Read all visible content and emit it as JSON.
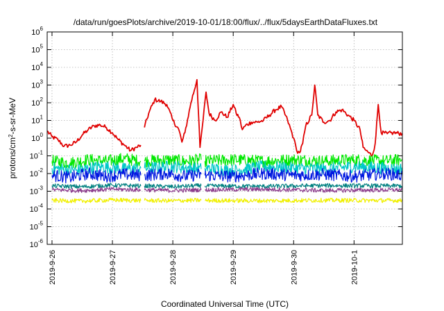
{
  "chart_data": {
    "type": "line",
    "title": "/data/run/goesPlots/archive/2019-10-01/18:00/flux/../flux/5daysEarthDataFluxes.txt",
    "xlabel": "Coordinated Universal Time (UTC)",
    "ylabel_prefix": "protons/cm",
    "ylabel_exp": "2",
    "ylabel_suffix": "-s-sr-MeV",
    "yscale": "log",
    "ylim": [
      1e-06,
      1000000.0
    ],
    "xlim": [
      -0.08,
      5.8
    ],
    "grid": true,
    "legend": "none",
    "y_ticks": [
      {
        "value": -6,
        "base": "10",
        "exp": "-6"
      },
      {
        "value": -5,
        "base": "10",
        "exp": "-5"
      },
      {
        "value": -4,
        "base": "10",
        "exp": "-4"
      },
      {
        "value": -3,
        "base": "10",
        "exp": "-3"
      },
      {
        "value": -2,
        "base": "10",
        "exp": "-2"
      },
      {
        "value": -1,
        "base": "10",
        "exp": "-1"
      },
      {
        "value": 0,
        "base": "10",
        "exp": "0"
      },
      {
        "value": 1,
        "base": "10",
        "exp": "1"
      },
      {
        "value": 2,
        "base": "10",
        "exp": "2"
      },
      {
        "value": 3,
        "base": "10",
        "exp": "3"
      },
      {
        "value": 4,
        "base": "10",
        "exp": "4"
      },
      {
        "value": 5,
        "base": "10",
        "exp": "5"
      },
      {
        "value": 6,
        "base": "10",
        "exp": "6"
      }
    ],
    "x_ticks": [
      {
        "value": 0,
        "label": "2019-9-26"
      },
      {
        "value": 1,
        "label": "2019-9-27"
      },
      {
        "value": 2,
        "label": "2019-9-28"
      },
      {
        "value": 3,
        "label": "2019-9-29"
      },
      {
        "value": 4,
        "label": "2019-9-30"
      },
      {
        "value": 5,
        "label": "2019-10-1"
      }
    ],
    "gaps": [
      [
        1.48,
        1.52
      ],
      [
        2.47,
        2.53
      ]
    ],
    "series": [
      {
        "color": "#e00000",
        "points": [
          [
            -0.08,
            2.5
          ],
          [
            0.0,
            1.2
          ],
          [
            0.1,
            0.8
          ],
          [
            0.2,
            0.35
          ],
          [
            0.3,
            0.4
          ],
          [
            0.4,
            0.6
          ],
          [
            0.5,
            1.5
          ],
          [
            0.6,
            3
          ],
          [
            0.7,
            5
          ],
          [
            0.8,
            5.5
          ],
          [
            0.9,
            4
          ],
          [
            1.0,
            2
          ],
          [
            1.1,
            0.8
          ],
          [
            1.2,
            0.4
          ],
          [
            1.3,
            0.2
          ],
          [
            1.4,
            0.3
          ],
          [
            1.47,
            0.4
          ],
          [
            1.53,
            4
          ],
          [
            1.6,
            25
          ],
          [
            1.7,
            150
          ],
          [
            1.8,
            120
          ],
          [
            1.9,
            80
          ],
          [
            2.0,
            10
          ],
          [
            2.1,
            3
          ],
          [
            2.15,
            0.6
          ],
          [
            2.2,
            2
          ],
          [
            2.3,
            100
          ],
          [
            2.4,
            2000
          ],
          [
            2.45,
            0.3
          ],
          [
            2.5,
            10
          ],
          [
            2.55,
            400
          ],
          [
            2.6,
            25
          ],
          [
            2.7,
            10
          ],
          [
            2.8,
            30
          ],
          [
            2.9,
            15
          ],
          [
            3.0,
            80
          ],
          [
            3.05,
            25
          ],
          [
            3.1,
            15
          ],
          [
            3.15,
            3
          ],
          [
            3.2,
            5
          ],
          [
            3.3,
            8
          ],
          [
            3.4,
            8
          ],
          [
            3.5,
            10
          ],
          [
            3.6,
            20
          ],
          [
            3.7,
            40
          ],
          [
            3.8,
            60
          ],
          [
            3.9,
            10
          ],
          [
            4.0,
            1
          ],
          [
            4.05,
            0.2
          ],
          [
            4.1,
            0.15
          ],
          [
            4.15,
            0.5
          ],
          [
            4.2,
            5
          ],
          [
            4.3,
            20
          ],
          [
            4.35,
            1000
          ],
          [
            4.4,
            20
          ],
          [
            4.5,
            8
          ],
          [
            4.6,
            10
          ],
          [
            4.7,
            30
          ],
          [
            4.8,
            40
          ],
          [
            4.9,
            20
          ],
          [
            5.0,
            10
          ],
          [
            5.1,
            3
          ],
          [
            5.15,
            0.3
          ],
          [
            5.2,
            0.2
          ],
          [
            5.3,
            0.1
          ],
          [
            5.35,
            0.5
          ],
          [
            5.4,
            80
          ],
          [
            5.45,
            2
          ],
          [
            5.55,
            1.8
          ],
          [
            5.65,
            2
          ],
          [
            5.8,
            1.8
          ]
        ]
      },
      {
        "color": "#00e800",
        "points": [
          [
            0.0,
            0.05
          ],
          [
            0.3,
            0.04
          ],
          [
            0.6,
            0.06
          ],
          [
            0.9,
            0.05
          ],
          [
            1.2,
            0.07
          ],
          [
            1.47,
            0.05
          ],
          [
            1.53,
            0.05
          ],
          [
            1.9,
            0.06
          ],
          [
            2.2,
            0.05
          ],
          [
            2.47,
            0.06
          ],
          [
            2.53,
            0.05
          ],
          [
            3.0,
            0.06
          ],
          [
            3.5,
            0.05
          ],
          [
            4.0,
            0.06
          ],
          [
            4.5,
            0.05
          ],
          [
            5.0,
            0.06
          ],
          [
            5.5,
            0.05
          ],
          [
            5.8,
            0.06
          ]
        ]
      },
      {
        "color": "#00c8c8",
        "points": [
          [
            0.0,
            0.02
          ],
          [
            0.4,
            0.015
          ],
          [
            0.8,
            0.025
          ],
          [
            1.2,
            0.018
          ],
          [
            1.47,
            0.02
          ],
          [
            1.53,
            0.02
          ],
          [
            2.0,
            0.025
          ],
          [
            2.47,
            0.018
          ],
          [
            2.53,
            0.02
          ],
          [
            3.0,
            0.015
          ],
          [
            3.5,
            0.025
          ],
          [
            4.0,
            0.02
          ],
          [
            4.5,
            0.018
          ],
          [
            5.0,
            0.025
          ],
          [
            5.5,
            0.02
          ],
          [
            5.8,
            0.018
          ]
        ]
      },
      {
        "color": "#0018e0",
        "points": [
          [
            0.0,
            0.008
          ],
          [
            0.3,
            0.006
          ],
          [
            0.6,
            0.01
          ],
          [
            0.9,
            0.007
          ],
          [
            1.2,
            0.009
          ],
          [
            1.47,
            0.008
          ],
          [
            1.53,
            0.008
          ],
          [
            1.9,
            0.01
          ],
          [
            2.2,
            0.007
          ],
          [
            2.47,
            0.009
          ],
          [
            2.53,
            0.008
          ],
          [
            3.0,
            0.007
          ],
          [
            3.5,
            0.01
          ],
          [
            4.0,
            0.008
          ],
          [
            4.5,
            0.009
          ],
          [
            5.0,
            0.007
          ],
          [
            5.5,
            0.01
          ],
          [
            5.8,
            0.008
          ]
        ]
      },
      {
        "color": "#008080",
        "points": [
          [
            0.0,
            0.002
          ],
          [
            0.5,
            0.0018
          ],
          [
            1.0,
            0.0022
          ],
          [
            1.47,
            0.002
          ],
          [
            1.53,
            0.002
          ],
          [
            2.0,
            0.0018
          ],
          [
            2.47,
            0.0021
          ],
          [
            2.53,
            0.002
          ],
          [
            3.5,
            0.0019
          ],
          [
            4.5,
            0.0021
          ],
          [
            5.8,
            0.002
          ]
        ]
      },
      {
        "color": "#8c3c8c",
        "points": [
          [
            0.0,
            0.0012
          ],
          [
            0.5,
            0.0011
          ],
          [
            1.0,
            0.0013
          ],
          [
            1.47,
            0.0012
          ],
          [
            1.53,
            0.0012
          ],
          [
            2.0,
            0.0011
          ],
          [
            2.47,
            0.0012
          ],
          [
            2.53,
            0.0012
          ],
          [
            3.5,
            0.0013
          ],
          [
            4.5,
            0.0011
          ],
          [
            5.8,
            0.0012
          ]
        ]
      },
      {
        "color": "#f0f000",
        "points": [
          [
            0.0,
            0.0003
          ],
          [
            0.5,
            0.00028
          ],
          [
            1.0,
            0.00032
          ],
          [
            1.47,
            0.0003
          ],
          [
            1.53,
            0.0003
          ],
          [
            2.0,
            0.00029
          ],
          [
            2.47,
            0.00031
          ],
          [
            2.53,
            0.0003
          ],
          [
            3.5,
            0.00029
          ],
          [
            4.5,
            0.00031
          ],
          [
            5.8,
            0.0003
          ]
        ]
      }
    ]
  }
}
